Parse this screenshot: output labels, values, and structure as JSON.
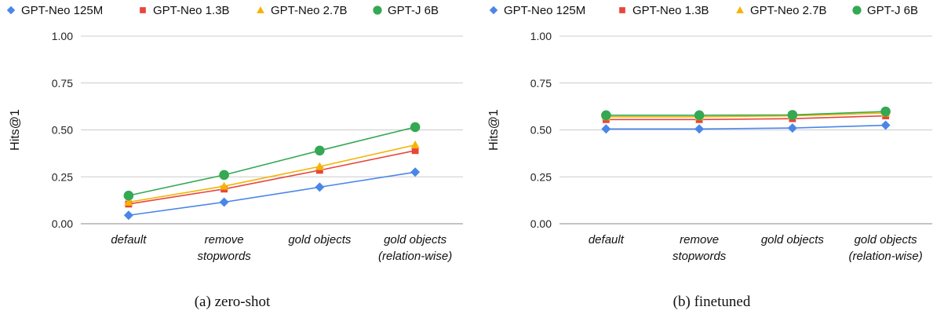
{
  "chart_data": [
    {
      "type": "line",
      "caption": "(a) zero-shot",
      "ylabel": "Hits@1",
      "xlabel": "",
      "ylim": [
        0,
        1
      ],
      "yticks": [
        "0.00",
        "0.25",
        "0.50",
        "0.75",
        "1.00"
      ],
      "ytick_values": [
        0,
        0.25,
        0.5,
        0.75,
        1.0
      ],
      "categories": [
        [
          "default"
        ],
        [
          "remove",
          "stopwords"
        ],
        [
          "gold objects"
        ],
        [
          "gold objects",
          "(relation-wise)"
        ]
      ],
      "grid": true,
      "legend_position": "top",
      "series": [
        {
          "name": "GPT-Neo 125M",
          "color": "#4a86e8",
          "marker": "diamond",
          "values": [
            0.045,
            0.115,
            0.195,
            0.275
          ]
        },
        {
          "name": "GPT-Neo 1.3B",
          "color": "#e8453c",
          "marker": "square",
          "values": [
            0.105,
            0.185,
            0.285,
            0.39
          ]
        },
        {
          "name": "GPT-Neo 2.7B",
          "color": "#f4b400",
          "marker": "triangle",
          "values": [
            0.115,
            0.2,
            0.305,
            0.42
          ]
        },
        {
          "name": "GPT-J 6B",
          "color": "#34a853",
          "marker": "circle",
          "values": [
            0.15,
            0.26,
            0.39,
            0.515
          ]
        }
      ]
    },
    {
      "type": "line",
      "caption": "(b) finetuned",
      "ylabel": "Hits@1",
      "xlabel": "",
      "ylim": [
        0,
        1
      ],
      "yticks": [
        "0.00",
        "0.25",
        "0.50",
        "0.75",
        "1.00"
      ],
      "ytick_values": [
        0,
        0.25,
        0.5,
        0.75,
        1.0
      ],
      "categories": [
        [
          "default"
        ],
        [
          "remove",
          "stopwords"
        ],
        [
          "gold objects"
        ],
        [
          "gold objects",
          "(relation-wise)"
        ]
      ],
      "grid": true,
      "legend_position": "top",
      "series": [
        {
          "name": "GPT-Neo 125M",
          "color": "#4a86e8",
          "marker": "diamond",
          "values": [
            0.505,
            0.505,
            0.51,
            0.525
          ]
        },
        {
          "name": "GPT-Neo 1.3B",
          "color": "#e8453c",
          "marker": "square",
          "values": [
            0.555,
            0.555,
            0.56,
            0.575
          ]
        },
        {
          "name": "GPT-Neo 2.7B",
          "color": "#f4b400",
          "marker": "triangle",
          "values": [
            0.57,
            0.57,
            0.575,
            0.59
          ]
        },
        {
          "name": "GPT-J 6B",
          "color": "#34a853",
          "marker": "circle",
          "values": [
            0.578,
            0.578,
            0.58,
            0.598
          ]
        }
      ]
    }
  ]
}
